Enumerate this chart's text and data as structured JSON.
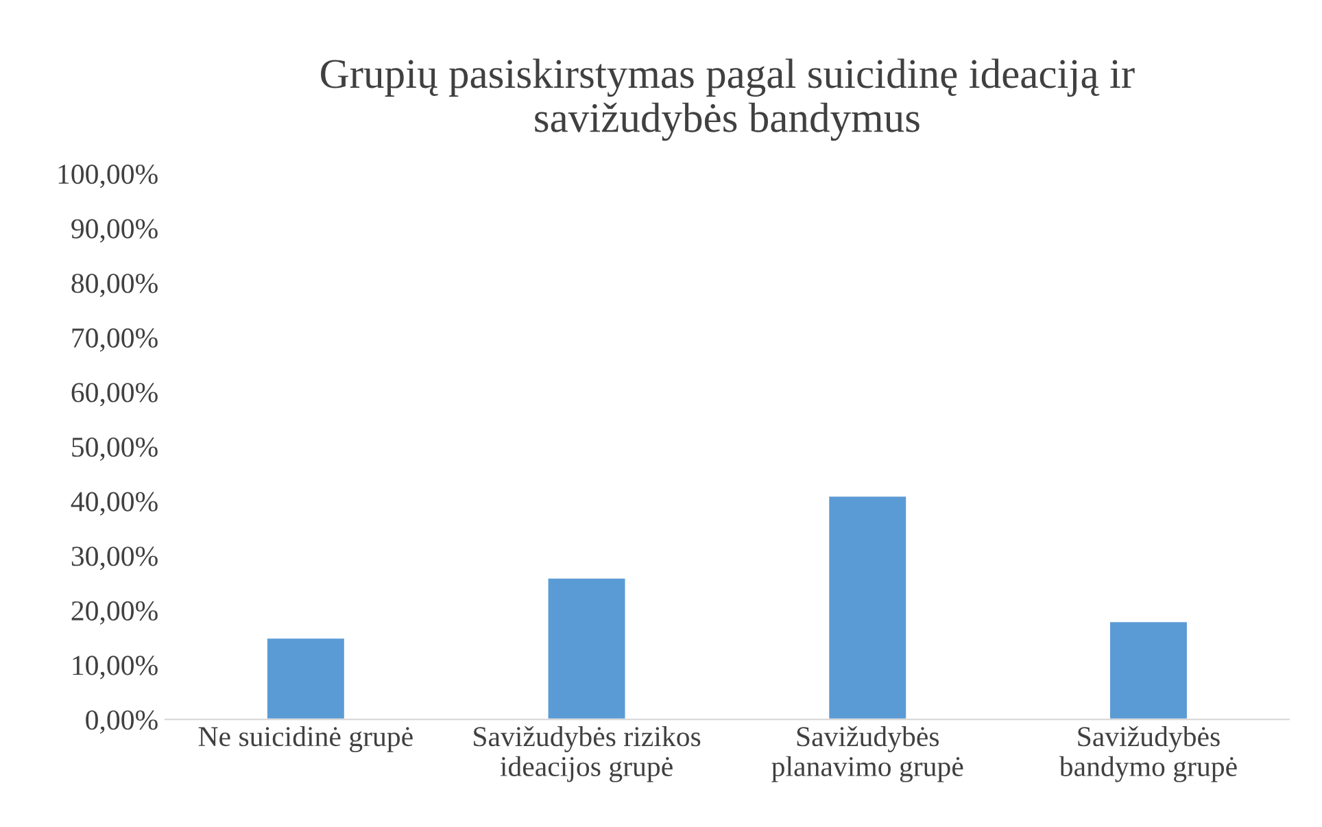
{
  "chart_data": {
    "type": "bar",
    "title": "Grupių pasiskirstymas pagal suicidinę ideaciją ir\nsavižudybės bandymus",
    "categories": [
      "Ne suicidinė grupė",
      "Savižudybės rizikos\nideacijos grupė",
      "Savižudybės\nplanavimo grupė",
      "Savižudybės\nbandymo grupė"
    ],
    "values": [
      15,
      26,
      41,
      18
    ],
    "color": "#5b9bd5",
    "ylim": [
      0,
      100
    ],
    "yticks": [
      {
        "value": 0,
        "label": "0,00%"
      },
      {
        "value": 10,
        "label": "10,00%"
      },
      {
        "value": 20,
        "label": "20,00%"
      },
      {
        "value": 30,
        "label": "30,00%"
      },
      {
        "value": 40,
        "label": "40,00%"
      },
      {
        "value": 50,
        "label": "50,00%"
      },
      {
        "value": 60,
        "label": "60,00%"
      },
      {
        "value": 70,
        "label": "70,00%"
      },
      {
        "value": 80,
        "label": "80,00%"
      },
      {
        "value": 90,
        "label": "90,00%"
      },
      {
        "value": 100,
        "label": "100,00%"
      }
    ],
    "grid": false
  }
}
